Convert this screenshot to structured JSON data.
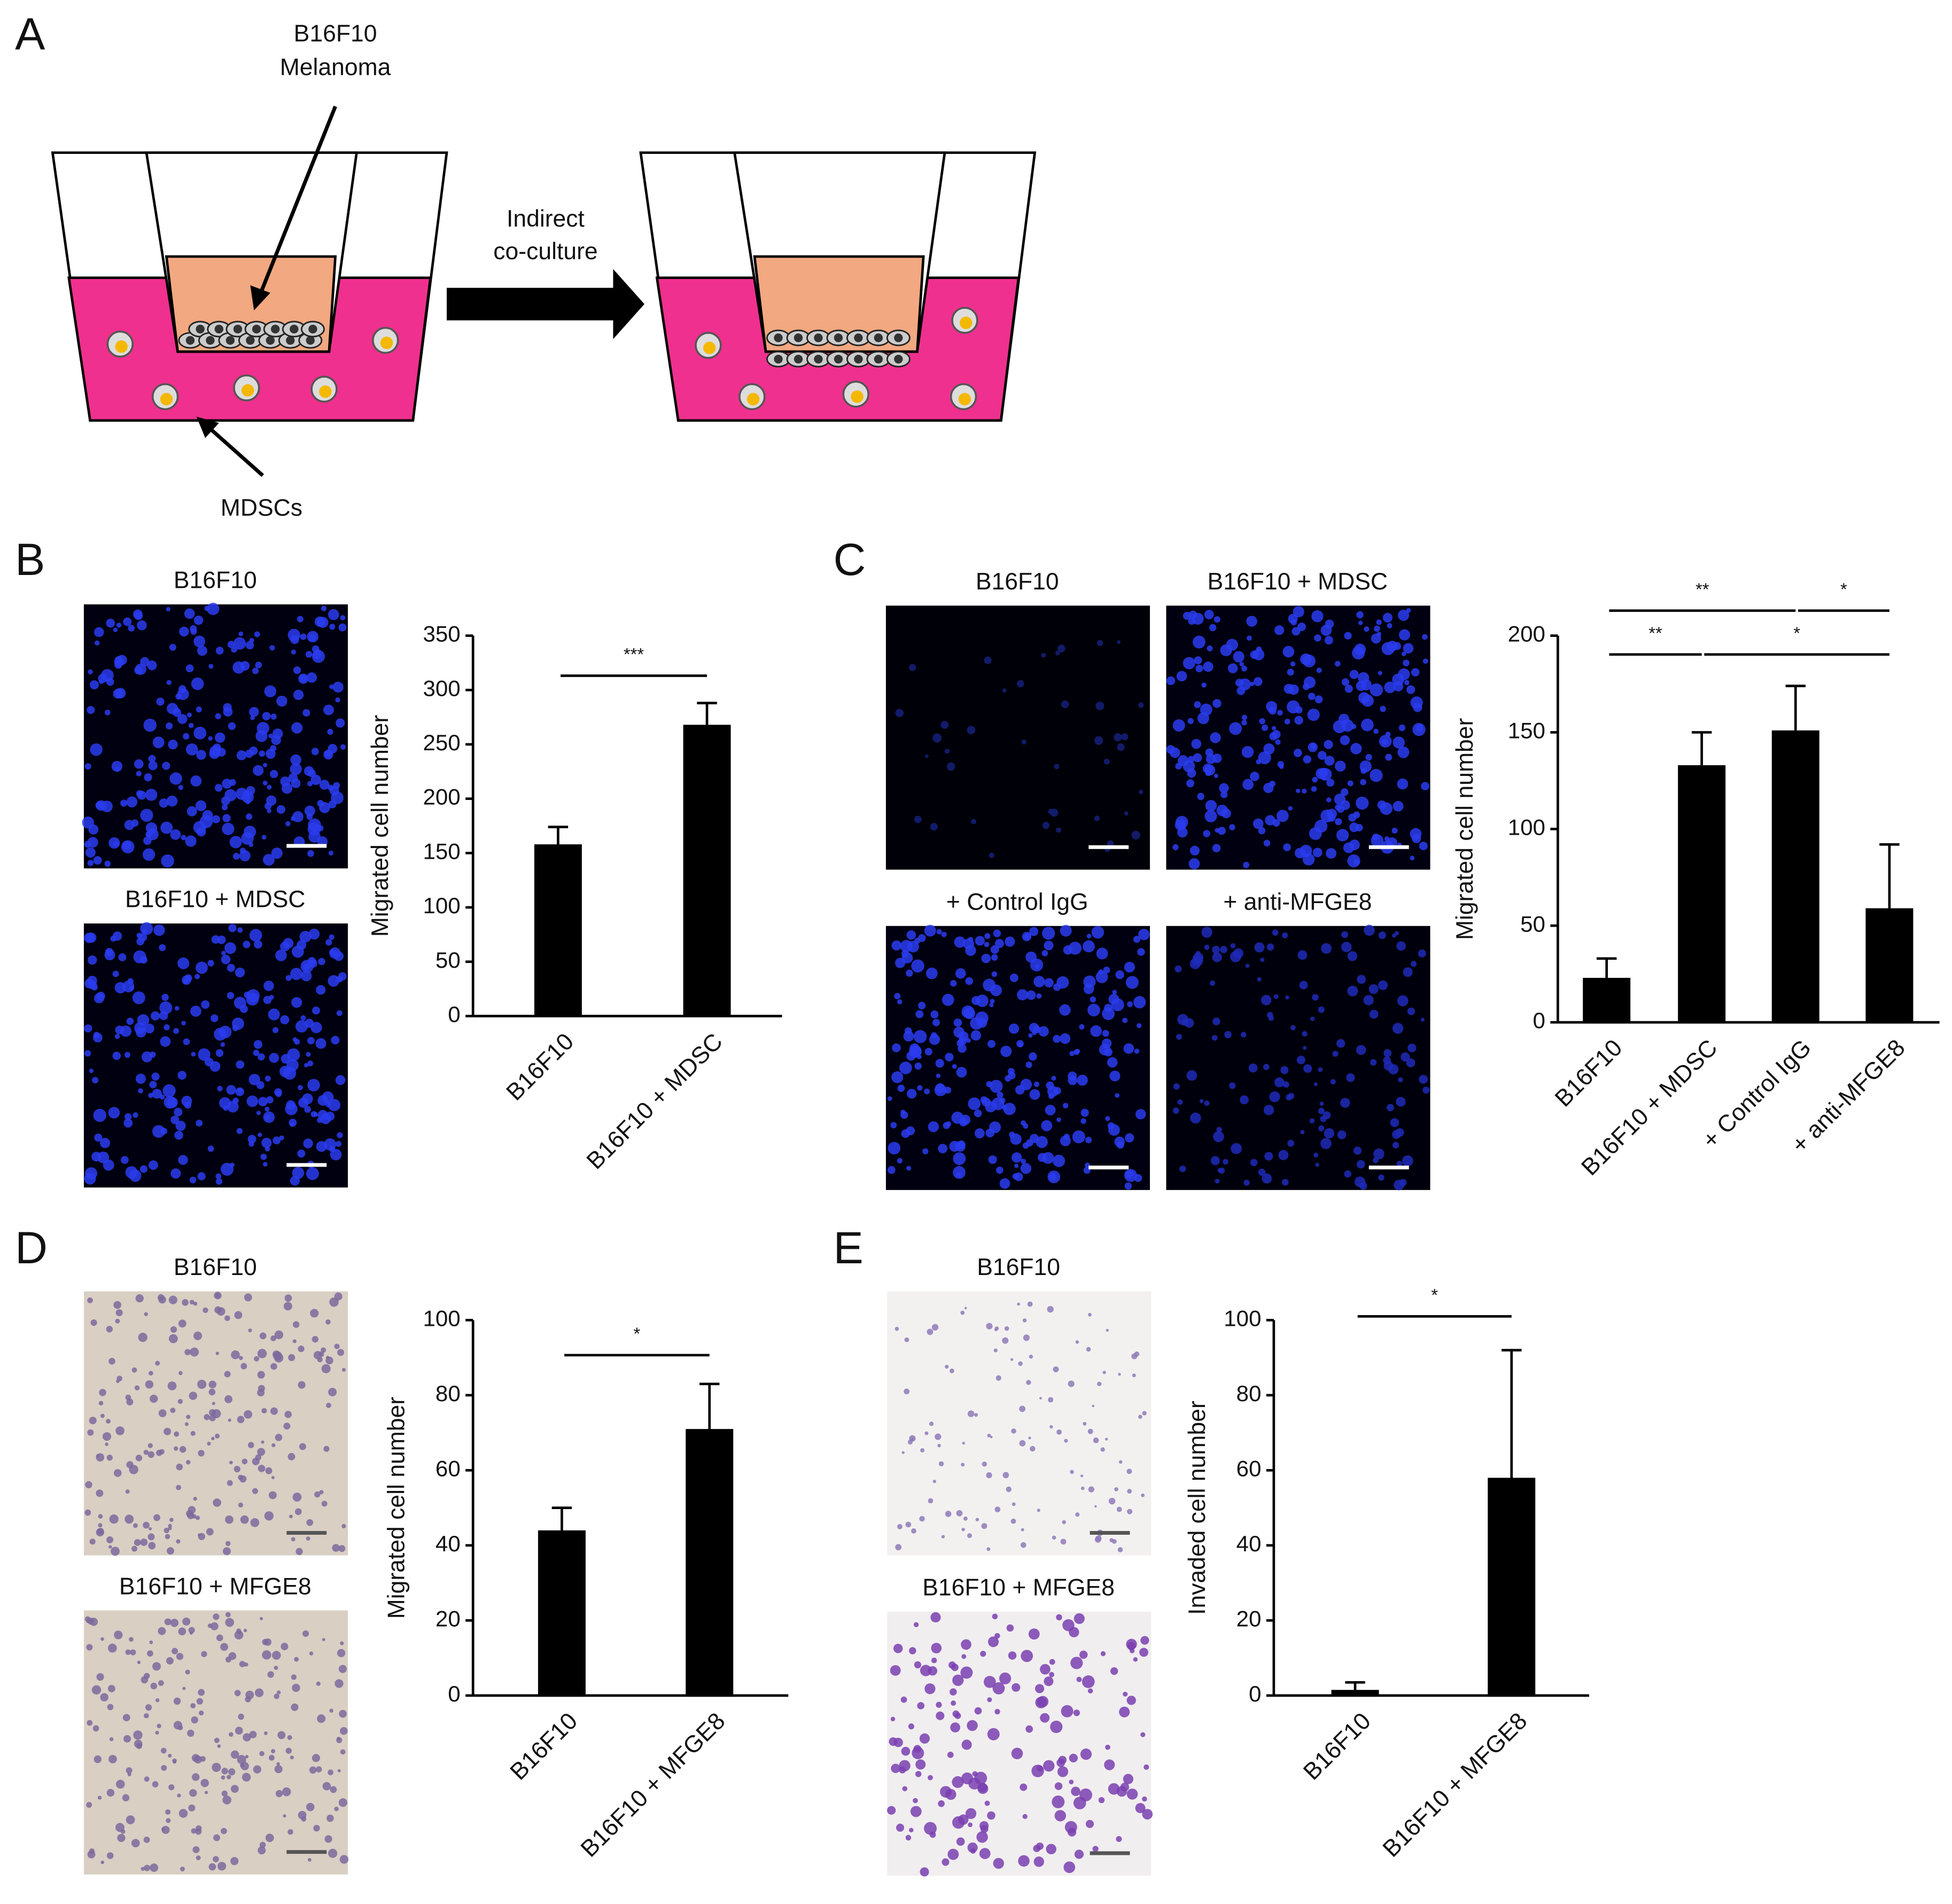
{
  "panel_labels": [
    "A",
    "B",
    "C",
    "D",
    "E"
  ],
  "schematic": {
    "insert_label": [
      "B16F10",
      "Melanoma"
    ],
    "mdsc_label": "MDSCs",
    "arrow_label": [
      "Indirect",
      "co-culture"
    ]
  },
  "micrographs": [
    "B16F10",
    "B16F10 + MDSC",
    "B16F10",
    "B16F10 + MDSC",
    "+ Control IgG",
    "+ anti-MFGE8",
    "B16F10",
    "B16F10 + MFGE8",
    "B16F10",
    "B16F10 + MFGE8"
  ],
  "chart_data": [
    {
      "type": "bar",
      "ylabel": "Migrated cell number",
      "categories": [
        "B16F10",
        "B16F10 + MDSC"
      ],
      "values": [
        158,
        268
      ],
      "errors": [
        16,
        20
      ],
      "color": "#000000",
      "ylim": [
        0,
        350
      ],
      "yticks": [
        0,
        50,
        100,
        150,
        200,
        250,
        300,
        350
      ],
      "annotations": [
        {
          "text": "***",
          "between": [
            0,
            1
          ]
        }
      ]
    },
    {
      "type": "bar",
      "ylabel": "Migrated cell number",
      "categories": [
        "B16F10",
        "B16F10 + MDSC",
        "+ Control IgG",
        "+ anti-MFGE8"
      ],
      "values": [
        23,
        133,
        151,
        59
      ],
      "errors": [
        10,
        17,
        23,
        33
      ],
      "color": "#000000",
      "ylim": [
        0,
        200
      ],
      "yticks": [
        0,
        50,
        100,
        150,
        200
      ],
      "annotations": [
        {
          "text": "**",
          "between": [
            0,
            2
          ]
        },
        {
          "text": "*",
          "between": [
            2,
            3
          ]
        },
        {
          "text": "**",
          "between": [
            0,
            1
          ]
        },
        {
          "text": "*",
          "between": [
            1,
            3
          ]
        }
      ]
    },
    {
      "type": "bar",
      "ylabel": "Migrated cell number",
      "categories": [
        "B16F10",
        "B16F10 + MFGE8"
      ],
      "values": [
        44,
        71
      ],
      "errors": [
        6,
        12
      ],
      "color": "#000000",
      "ylim": [
        0,
        100
      ],
      "yticks": [
        0,
        20,
        40,
        60,
        80,
        100
      ],
      "annotations": [
        {
          "text": "*",
          "between": [
            0,
            1
          ]
        }
      ]
    },
    {
      "type": "bar",
      "ylabel": "Invaded cell number",
      "categories": [
        "B16F10",
        "B16F10 + MFGE8"
      ],
      "values": [
        1.5,
        58
      ],
      "errors": [
        2,
        34
      ],
      "color": "#000000",
      "ylim": [
        0,
        100
      ],
      "yticks": [
        0,
        20,
        40,
        60,
        80,
        100
      ],
      "annotations": [
        {
          "text": "*",
          "between": [
            0,
            1
          ]
        }
      ]
    }
  ]
}
